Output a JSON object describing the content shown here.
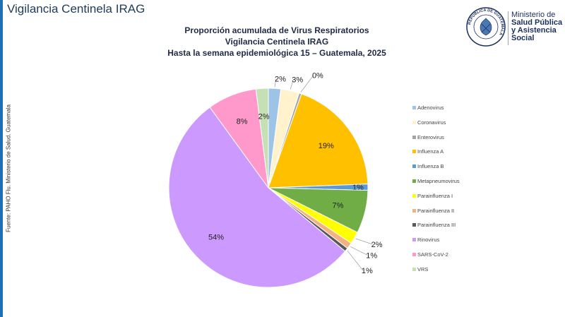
{
  "header": {
    "title": "Vigilancia Centinela IRAG"
  },
  "logo": {
    "seal_text": "REPÚBLICA DE GUATEMALA",
    "lines": [
      "Ministerio de",
      "Salud Pública",
      "y Asistencia",
      "Social"
    ]
  },
  "source": "Fuente: PAHO Flu.  Ministerio de Salud. Guatemala",
  "chart_data": {
    "type": "pie",
    "title": [
      "Proporción acumulada de Virus Respiratorios",
      "Vigilancia Centinela IRAG",
      "Hasta la semana epidemiológica  15 – Guatemala, 2025"
    ],
    "legend_position": "right",
    "start_angle_deg": 0,
    "slices": [
      {
        "name": "Adenovirus",
        "value": 2,
        "label": "2%",
        "color": "#9dc3e6"
      },
      {
        "name": "Coronavirus",
        "value": 3,
        "label": "3%",
        "color": "#fff2cc"
      },
      {
        "name": "Enterovirus",
        "value": 0.4,
        "label": "0%",
        "color": "#a5a5a5"
      },
      {
        "name": "Influenza A",
        "value": 19,
        "label": "19%",
        "color": "#ffc000"
      },
      {
        "name": "Influenza B",
        "value": 1,
        "label": "1%",
        "color": "#5b9bd5"
      },
      {
        "name": "Metapneumovirus",
        "value": 7,
        "label": "7%",
        "color": "#70ad47"
      },
      {
        "name": "Parainfluenza I",
        "value": 2,
        "label": "2%",
        "color": "#ffff00"
      },
      {
        "name": "Parainfluenza II",
        "value": 1,
        "label": "1%",
        "color": "#f4b183"
      },
      {
        "name": "Parainfluenza III",
        "value": 0.6,
        "label": "1%",
        "color": "#595959"
      },
      {
        "name": "Rinovirus",
        "value": 54,
        "label": "54%",
        "color": "#cc99ff"
      },
      {
        "name": "SARS-CoV-2",
        "value": 8,
        "label": "8%",
        "color": "#ff99cc"
      },
      {
        "name": "VRS",
        "value": 2,
        "label": "2%",
        "color": "#c5e0b4"
      }
    ]
  }
}
